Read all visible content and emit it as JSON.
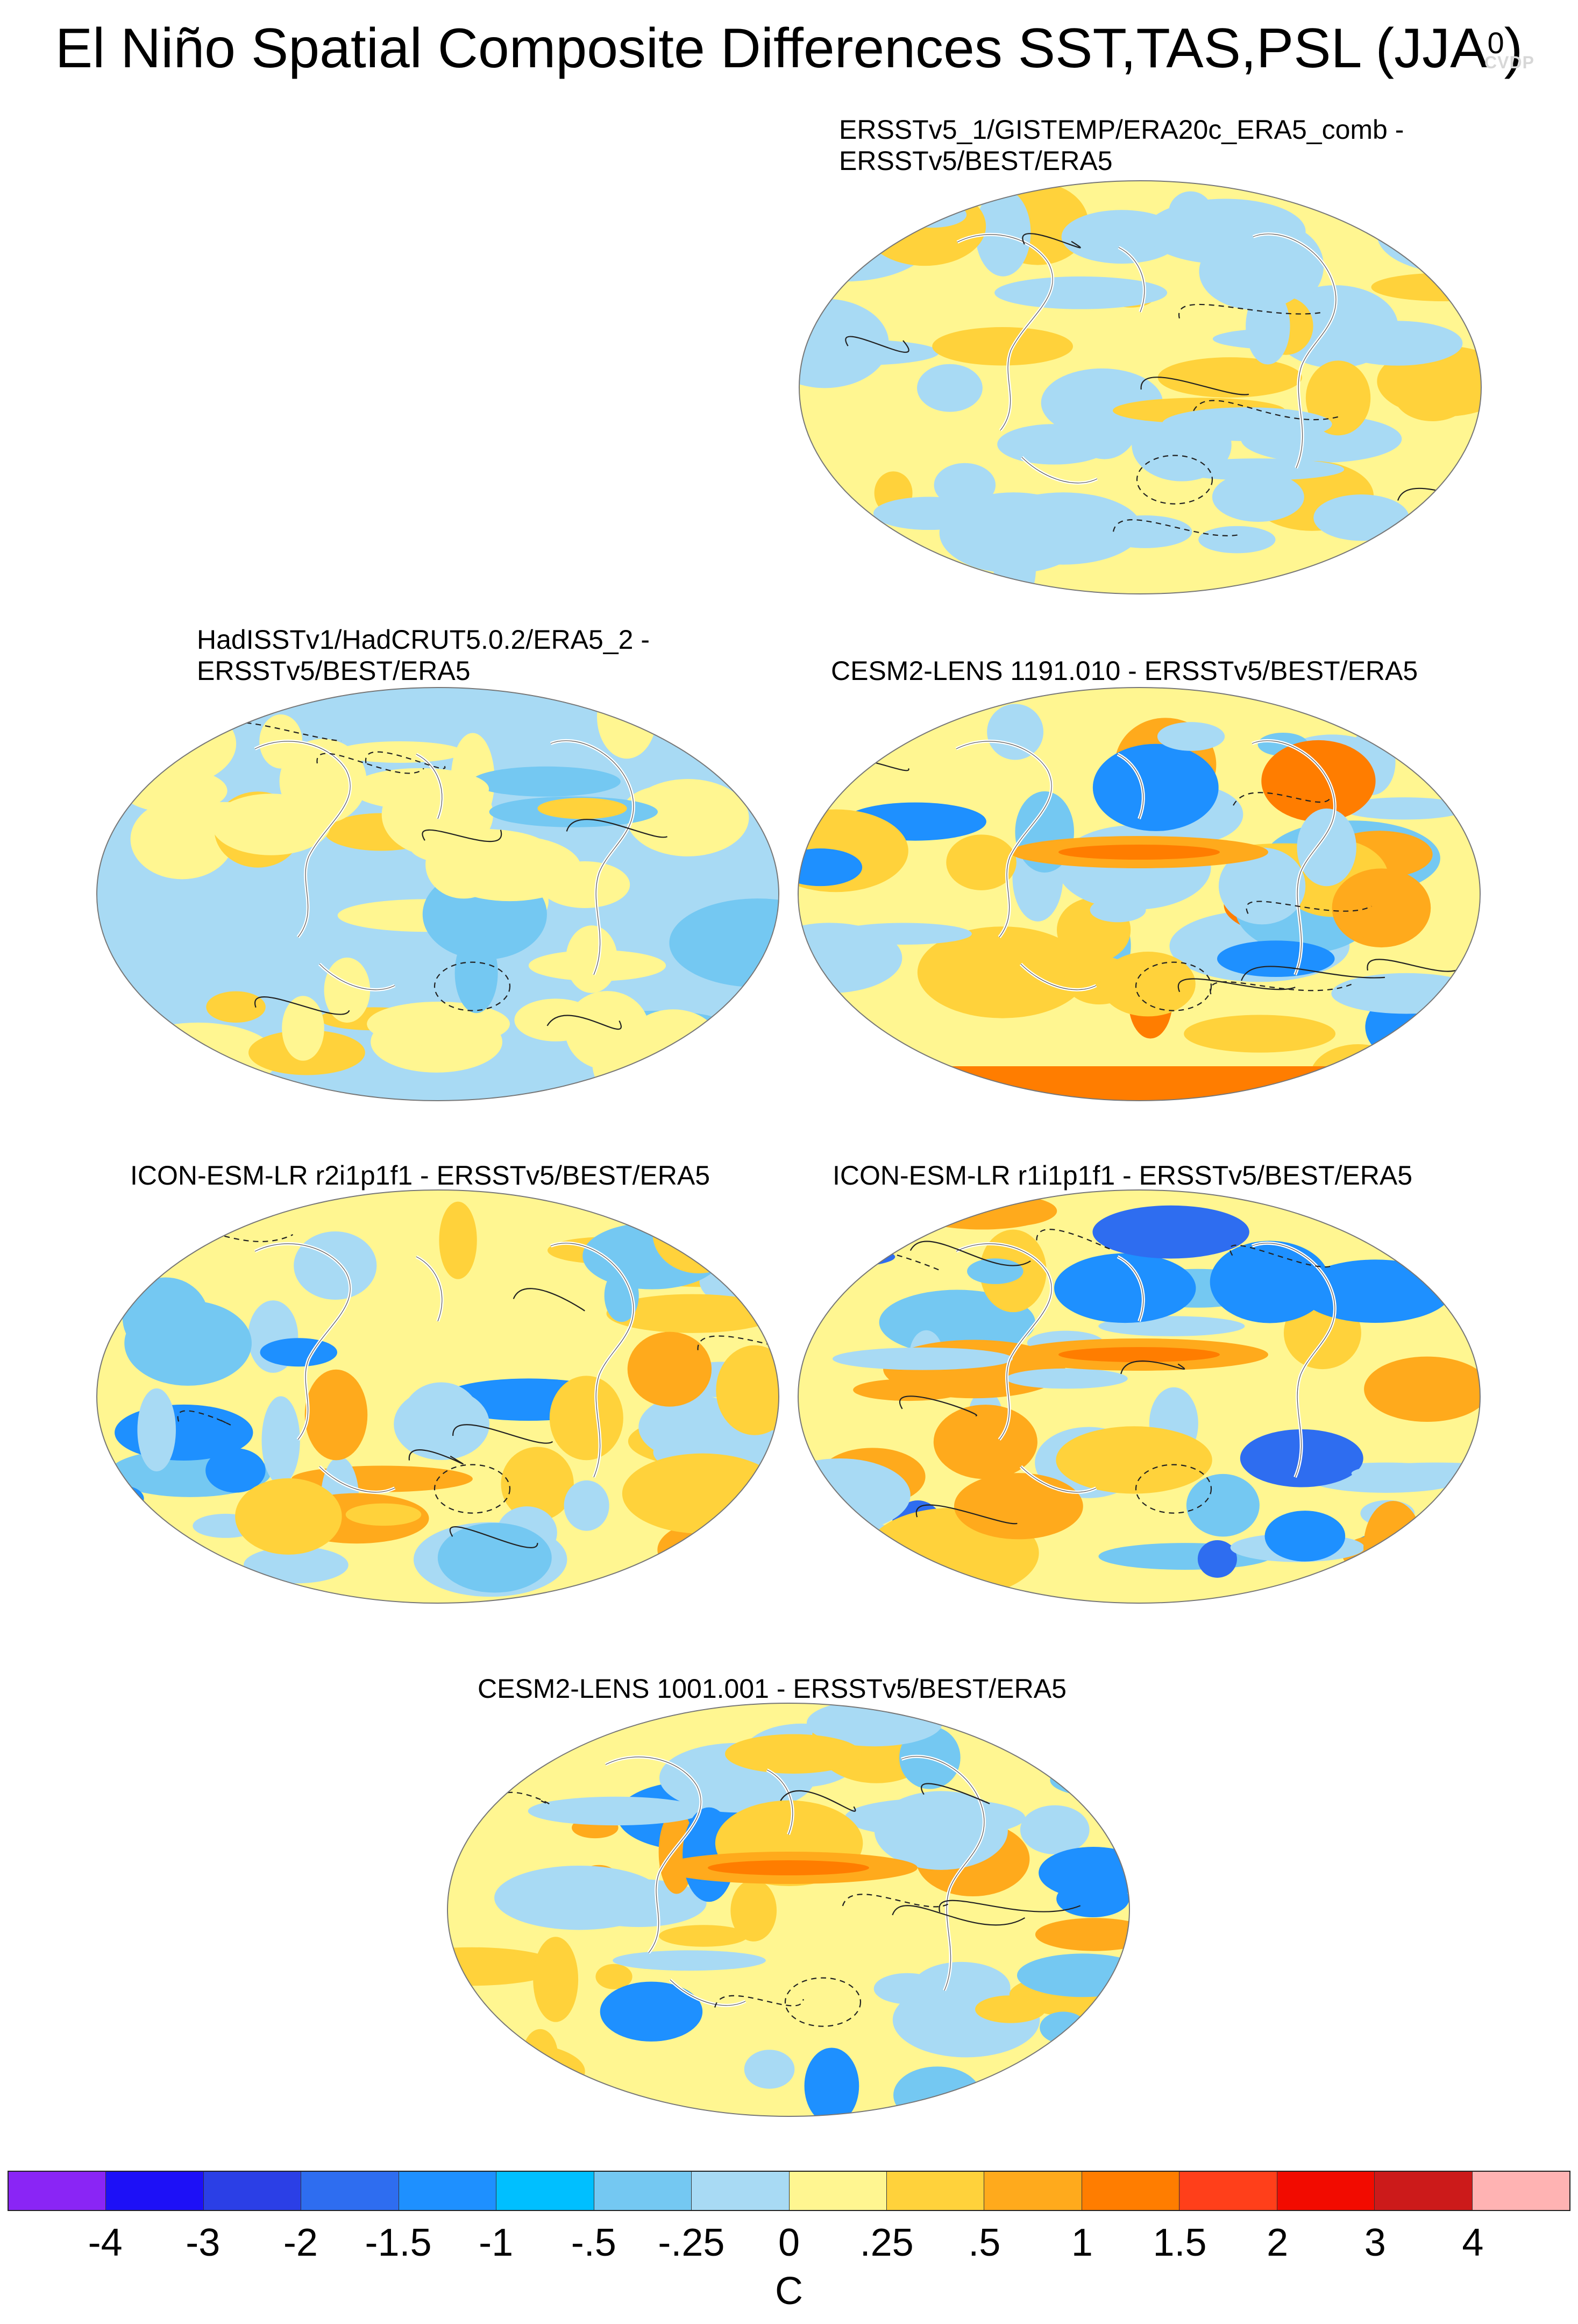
{
  "title": {
    "main": "El Niño Spatial Composite Differences SST,TAS,PSL (JJA",
    "superscript": "0",
    "close": ")"
  },
  "watermark": "CVDP",
  "panels": [
    {
      "title_line1": "ERSSTv5_1/GISTEMP/ERA20c_ERA5_comb -",
      "title_line2": "ERSSTv5/BEST/ERA5"
    },
    {
      "title_line1": "HadISSTv1/HadCRUT5.0.2/ERA5_2 -",
      "title_line2": "ERSSTv5/BEST/ERA5"
    },
    {
      "title_line1": "CESM2-LENS 1191.010 - ERSSTv5/BEST/ERA5",
      "title_line2": ""
    },
    {
      "title_line1": "ICON-ESM-LR r2i1p1f1 - ERSSTv5/BEST/ERA5",
      "title_line2": ""
    },
    {
      "title_line1": "ICON-ESM-LR r1i1p1f1 - ERSSTv5/BEST/ERA5",
      "title_line2": ""
    },
    {
      "title_line1": "CESM2-LENS 1001.001 - ERSSTv5/BEST/ERA5",
      "title_line2": ""
    }
  ],
  "colorbar": {
    "colors": [
      "#8a25f5",
      "#1d10f7",
      "#2b3fe6",
      "#2e6df0",
      "#1e90ff",
      "#00bfff",
      "#74c8f2",
      "#a8daf4",
      "#fff691",
      "#ffd23b",
      "#ffaa1c",
      "#ff7d00",
      "#ff3f1a",
      "#f20b00",
      "#cc1a1a",
      "#ffb3b3"
    ],
    "labels": [
      "-4",
      "-3",
      "-2",
      "-1.5",
      "-1",
      "-.5",
      "-.25",
      "0",
      ".25",
      ".5",
      "1",
      "1.5",
      "2",
      "3",
      "4"
    ],
    "units": "C"
  }
}
